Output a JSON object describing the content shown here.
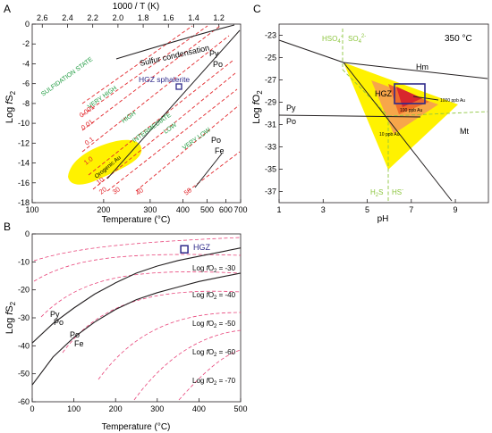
{
  "chart_data": [
    {
      "panel": "A",
      "type": "line",
      "xlabel": "Temperature (°C)",
      "ylabel_main": "Log ",
      "ylabel_italic": "f",
      "ylabel_sub_s": "S",
      "ylabel_sub_2": "2",
      "top_axis_label": "1000 / T (K)",
      "x_ticks": [
        "100",
        "200",
        "300",
        "400",
        "500",
        "600",
        "700"
      ],
      "x_tick_values": [
        100,
        200,
        300,
        400,
        500,
        600,
        700
      ],
      "x_scale": "reciprocal",
      "top_ticks": [
        "2.6",
        "2.4",
        "2.2",
        "2.0",
        "1.8",
        "1.6",
        "1.4",
        "1.2"
      ],
      "top_tick_values": [
        2.6,
        2.4,
        2.2,
        2.0,
        1.8,
        1.6,
        1.4,
        1.2
      ],
      "y_ticks": [
        "0",
        "-2",
        "-4",
        "-6",
        "-8",
        "-10",
        "-12",
        "-14",
        "-16",
        "-18"
      ],
      "ylim": [
        -18,
        0
      ],
      "xlim": [
        100,
        700
      ],
      "labels": {
        "sulfur": "Sulfur condensation",
        "hgz": "HGZ sphalerite",
        "py": "Py",
        "po": "Po",
        "po2": "Po",
        "fe": "Fe",
        "orogenic": "Orogenic Au",
        "state": "SULFIDATION STATE",
        "very_high": "VERY HIGH",
        "high": "HIGH",
        "intermediate": "INTERMEDIATE",
        "low": "LOW",
        "very_low": "VERY LOW",
        "v0001": "0.001",
        "v001": "0.01",
        "v01": "0.1",
        "v1": "1.0",
        "v10": "10",
        "v20": "20",
        "v30": "30",
        "v40": "40",
        "v50": "50"
      },
      "hgz_point": {
        "T": 395,
        "logfS2": -6.2
      }
    },
    {
      "panel": "B",
      "type": "line",
      "xlabel": "Temperature (°C)",
      "ylabel_main": "Log ",
      "ylabel_italic": "f",
      "ylabel_sub_s": "S",
      "ylabel_sub_2": "2",
      "x_ticks": [
        "0",
        "100",
        "200",
        "300",
        "400",
        "500"
      ],
      "x_tick_values": [
        0,
        100,
        200,
        300,
        400,
        500
      ],
      "y_ticks": [
        "0",
        "-10",
        "-20",
        "-30",
        "-40",
        "-50",
        "-60"
      ],
      "xlim": [
        0,
        500
      ],
      "ylim": [
        -60,
        0
      ],
      "legend": "HGZ",
      "iso_prefix": "Log ",
      "iso_italic": "f",
      "iso_o": "O",
      "iso_2": "2",
      "isopleths": [
        " = -30",
        " = -40",
        " = -50",
        " = -60",
        " = -70"
      ],
      "series": [
        {
          "name": "Py/Po",
          "x": [
            0,
            50,
            100,
            150,
            200,
            250,
            300,
            350,
            400,
            450,
            500
          ],
          "y": [
            -39,
            -32,
            -26.5,
            -21.5,
            -17.5,
            -14,
            -11.5,
            -9.5,
            -8,
            -6.5,
            -5
          ]
        },
        {
          "name": "Po/Fe",
          "x": [
            0,
            50,
            100,
            150,
            200,
            250,
            300,
            350,
            400,
            450,
            500
          ],
          "y": [
            -54,
            -44,
            -37,
            -31.5,
            -27,
            -23.5,
            -21,
            -19,
            -17,
            -15.5,
            -14
          ]
        }
      ],
      "labels": {
        "py": "Py",
        "po": "Po",
        "po2": "Po",
        "fe": "Fe"
      },
      "hgz_point": {
        "T": 365,
        "logfS2": -5.5
      }
    },
    {
      "panel": "C",
      "type": "line",
      "title": "350 °C",
      "xlabel": "pH",
      "ylabel_main": "Log ",
      "ylabel_italic": "f",
      "ylabel_sub_o": "O",
      "ylabel_sub_2": "2",
      "x_ticks": [
        "1",
        "3",
        "5",
        "7",
        "9"
      ],
      "x_tick_values": [
        1,
        3,
        5,
        7,
        9
      ],
      "y_ticks": [
        "-23",
        "-25",
        "-27",
        "-29",
        "-31",
        "-33",
        "-35",
        "-37"
      ],
      "xlim": [
        1,
        10.5
      ],
      "ylim": [
        -38,
        -22
      ],
      "labels": {
        "hso4": "HSO",
        "hso4_sub": "4",
        "hso4_sup": "-",
        "so4": "SO",
        "so4_sub": "4",
        "so4_sup": "2-",
        "h2s": "H",
        "h2s_sub": "2",
        "h2s_tail": "S",
        "hs": "HS",
        "hs_sup": "-",
        "hm": "Hm",
        "mt": "Mt",
        "py": "Py",
        "po": "Po",
        "hgz": "HGZ",
        "au1000": "1000 ppb Au",
        "au100": "100 ppb Au",
        "au10": "10 ppb Au"
      }
    }
  ],
  "panel_letters": [
    "A",
    "B",
    "C"
  ],
  "colors": {
    "red_dash": "#e2282d",
    "green_text": "#1c9a3e",
    "green_dash": "#8dc63f",
    "yellow": "#fff200",
    "orange": "#f7a64a",
    "dark_orange": "#ee6b2b",
    "red_core": "#d8272d",
    "blue_box": "#2e2a8a",
    "pink_dash": "#e8447a",
    "axis": "#231f20"
  }
}
